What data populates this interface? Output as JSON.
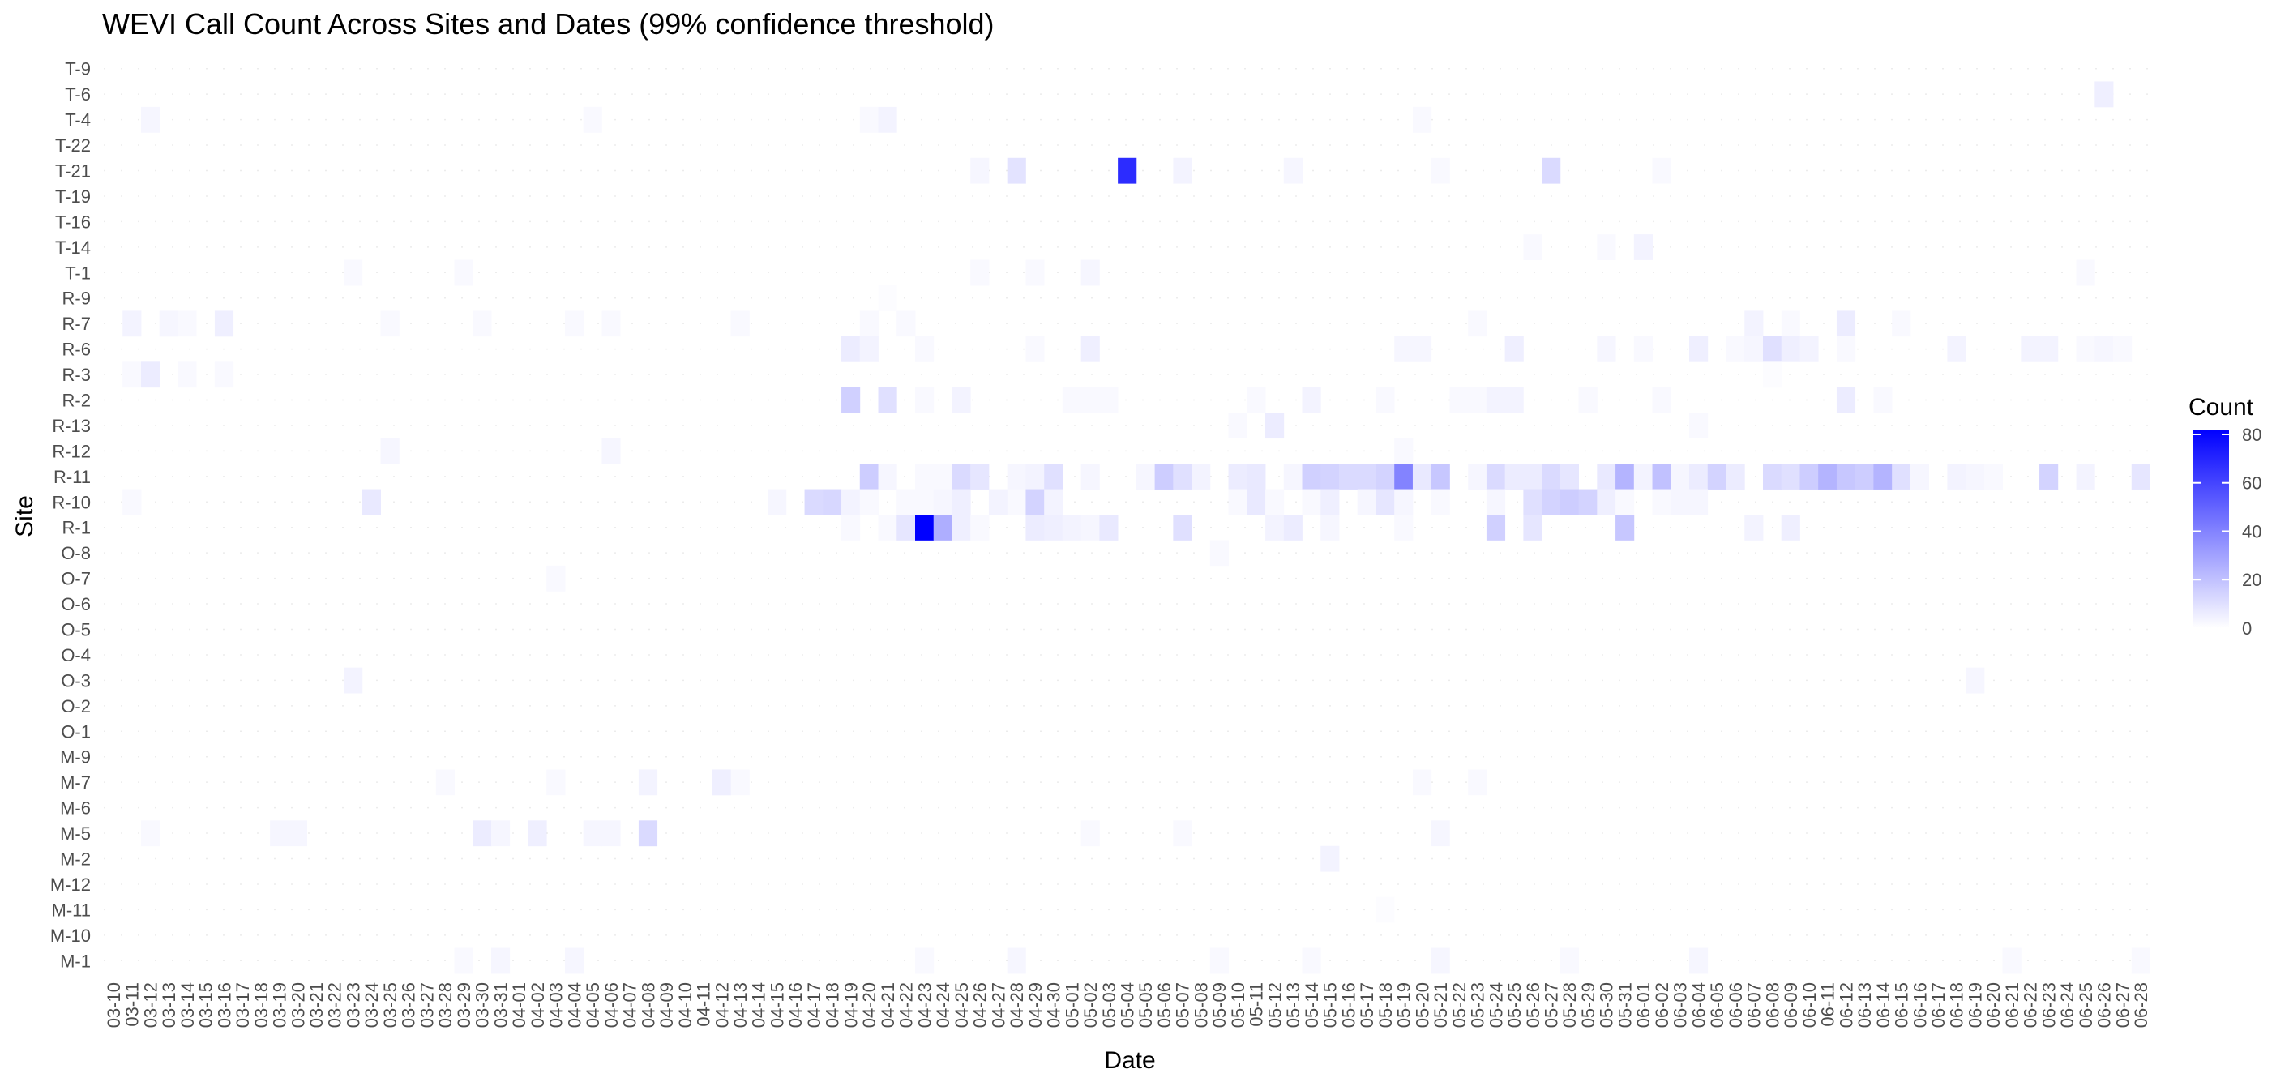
{
  "chart_data": {
    "type": "heatmap",
    "title": "WEVI Call Count Across Sites and Dates (99% confidence threshold)",
    "xlabel": "Date",
    "ylabel": "Site",
    "legend": {
      "title": "Count",
      "ticks": [
        0,
        20,
        40,
        60,
        80
      ],
      "range": [
        0,
        82
      ],
      "placement": "right"
    },
    "colors": {
      "low": "#ffffff",
      "high": "#0000ff",
      "dotted_grid": "#d9d9d9"
    },
    "dates": [
      "03-10",
      "03-11",
      "03-12",
      "03-13",
      "03-14",
      "03-15",
      "03-16",
      "03-17",
      "03-18",
      "03-19",
      "03-20",
      "03-21",
      "03-22",
      "03-23",
      "03-24",
      "03-25",
      "03-26",
      "03-27",
      "03-28",
      "03-29",
      "03-30",
      "03-31",
      "04-01",
      "04-02",
      "04-03",
      "04-04",
      "04-05",
      "04-06",
      "04-07",
      "04-08",
      "04-09",
      "04-10",
      "04-11",
      "04-12",
      "04-13",
      "04-14",
      "04-15",
      "04-16",
      "04-17",
      "04-18",
      "04-19",
      "04-20",
      "04-21",
      "04-22",
      "04-23",
      "04-24",
      "04-25",
      "04-26",
      "04-27",
      "04-28",
      "04-29",
      "04-30",
      "05-01",
      "05-02",
      "05-03",
      "05-04",
      "05-05",
      "05-06",
      "05-07",
      "05-08",
      "05-09",
      "05-10",
      "05-11",
      "05-12",
      "05-13",
      "05-14",
      "05-15",
      "05-16",
      "05-17",
      "05-18",
      "05-19",
      "05-20",
      "05-21",
      "05-22",
      "05-23",
      "05-24",
      "05-25",
      "05-26",
      "05-27",
      "05-28",
      "05-29",
      "05-30",
      "05-31",
      "06-01",
      "06-02",
      "06-03",
      "06-04",
      "06-05",
      "06-06",
      "06-07",
      "06-08",
      "06-09",
      "06-10",
      "06-11",
      "06-12",
      "06-13",
      "06-14",
      "06-15",
      "06-16",
      "06-17",
      "06-18",
      "06-19",
      "06-20",
      "06-21",
      "06-22",
      "06-23",
      "06-24",
      "06-25",
      "06-26",
      "06-27",
      "06-28"
    ],
    "x_tick_labels": [
      "03-10",
      "03-11",
      "03-12",
      "03-13",
      "03-14",
      "03-15",
      "03-16",
      "03-17",
      "03-18",
      "03-19",
      "03-20",
      "03-21",
      "03-22",
      "03-23",
      "03-24",
      "03-25",
      "03-26",
      "03-27",
      "03-28",
      "03-29",
      "03-30",
      "03-31",
      "04-01",
      "04-02",
      "04-03",
      "04-04",
      "04-05",
      "04-06",
      "04-07",
      "04-08",
      "04-09",
      "04-10",
      "04-11",
      "04-12",
      "04-13",
      "04-14",
      "04-15",
      "04-16",
      "04-17",
      "04-18",
      "04-19",
      "04-20",
      "04-21",
      "04-22",
      "04-23",
      "04-24",
      "04-25",
      "04-26",
      "04-27",
      "04-28",
      "04-29",
      "04-30",
      "05-01",
      "05-02",
      "05-03",
      "05-04",
      "05-05",
      "05-06",
      "05-07",
      "05-08",
      "05-09",
      "05-10",
      "05-11",
      "05-12",
      "05-13",
      "05-14",
      "05-15",
      "05-16",
      "05-17",
      "05-18",
      "05-19",
      "05-20",
      "05-21",
      "05-22",
      "05-23",
      "05-24",
      "05-25",
      "05-26",
      "05-27",
      "05-28",
      "05-29",
      "05-30",
      "05-31",
      "06-01",
      "06-02",
      "06-03",
      "06-04",
      "06-05",
      "06-06",
      "06-07",
      "06-08",
      "06-09",
      "06-10",
      "06-11",
      "06-12",
      "06-13",
      "06-14",
      "06-15",
      "06-16",
      "06-17",
      "06-18",
      "06-19",
      "06-20",
      "06-21",
      "06-22",
      "06-23",
      "06-24",
      "06-25",
      "06-26",
      "06-27",
      "06-28"
    ],
    "sites": [
      "T-9",
      "T-6",
      "T-4",
      "T-22",
      "T-21",
      "T-19",
      "T-16",
      "T-14",
      "T-1",
      "R-9",
      "R-7",
      "R-6",
      "R-3",
      "R-2",
      "R-13",
      "R-12",
      "R-11",
      "R-10",
      "R-1",
      "O-8",
      "O-7",
      "O-6",
      "O-5",
      "O-4",
      "O-3",
      "O-2",
      "O-1",
      "M-9",
      "M-7",
      "M-6",
      "M-5",
      "M-2",
      "M-12",
      "M-11",
      "M-10",
      "M-1"
    ],
    "cells": [
      [
        "T-6",
        "06-26",
        5
      ],
      [
        "T-4",
        "03-12",
        3
      ],
      [
        "T-4",
        "04-05",
        2
      ],
      [
        "T-4",
        "04-20",
        2
      ],
      [
        "T-4",
        "04-21",
        4
      ],
      [
        "T-4",
        "05-20",
        2
      ],
      [
        "T-21",
        "04-26",
        3
      ],
      [
        "T-21",
        "04-28",
        9
      ],
      [
        "T-21",
        "05-04",
        68
      ],
      [
        "T-21",
        "05-07",
        4
      ],
      [
        "T-21",
        "05-13",
        3
      ],
      [
        "T-21",
        "05-21",
        2
      ],
      [
        "T-21",
        "05-27",
        12
      ],
      [
        "T-21",
        "06-02",
        2
      ],
      [
        "T-14",
        "05-26",
        2
      ],
      [
        "T-14",
        "05-30",
        2
      ],
      [
        "T-14",
        "06-01",
        4
      ],
      [
        "T-1",
        "03-23",
        2
      ],
      [
        "T-1",
        "03-29",
        2
      ],
      [
        "T-1",
        "04-26",
        2
      ],
      [
        "T-1",
        "04-29",
        2
      ],
      [
        "T-1",
        "05-02",
        3
      ],
      [
        "T-1",
        "06-25",
        2
      ],
      [
        "R-9",
        "04-21",
        1
      ],
      [
        "R-7",
        "03-11",
        4
      ],
      [
        "R-7",
        "03-13",
        3
      ],
      [
        "R-7",
        "03-14",
        2
      ],
      [
        "R-7",
        "03-16",
        5
      ],
      [
        "R-7",
        "03-25",
        2
      ],
      [
        "R-7",
        "03-30",
        2
      ],
      [
        "R-7",
        "04-04",
        2
      ],
      [
        "R-7",
        "04-06",
        2
      ],
      [
        "R-7",
        "04-13",
        2
      ],
      [
        "R-7",
        "04-20",
        2
      ],
      [
        "R-7",
        "04-22",
        2
      ],
      [
        "R-7",
        "05-23",
        2
      ],
      [
        "R-7",
        "06-07",
        4
      ],
      [
        "R-7",
        "06-09",
        2
      ],
      [
        "R-7",
        "06-12",
        6
      ],
      [
        "R-7",
        "06-15",
        2
      ],
      [
        "R-6",
        "04-19",
        6
      ],
      [
        "R-6",
        "04-20",
        4
      ],
      [
        "R-6",
        "04-23",
        2
      ],
      [
        "R-6",
        "04-29",
        2
      ],
      [
        "R-6",
        "05-02",
        5
      ],
      [
        "R-6",
        "05-19",
        3
      ],
      [
        "R-6",
        "05-20",
        3
      ],
      [
        "R-6",
        "05-25",
        5
      ],
      [
        "R-6",
        "05-30",
        3
      ],
      [
        "R-6",
        "06-01",
        2
      ],
      [
        "R-6",
        "06-04",
        5
      ],
      [
        "R-6",
        "06-06",
        2
      ],
      [
        "R-6",
        "06-07",
        3
      ],
      [
        "R-6",
        "06-08",
        10
      ],
      [
        "R-6",
        "06-09",
        5
      ],
      [
        "R-6",
        "06-10",
        4
      ],
      [
        "R-6",
        "06-12",
        2
      ],
      [
        "R-6",
        "06-18",
        4
      ],
      [
        "R-6",
        "06-22",
        4
      ],
      [
        "R-6",
        "06-23",
        4
      ],
      [
        "R-6",
        "06-25",
        2
      ],
      [
        "R-6",
        "06-26",
        3
      ],
      [
        "R-6",
        "06-27",
        2
      ],
      [
        "R-3",
        "03-11",
        2
      ],
      [
        "R-3",
        "03-12",
        6
      ],
      [
        "R-3",
        "03-14",
        2
      ],
      [
        "R-3",
        "03-16",
        2
      ],
      [
        "R-3",
        "06-08",
        1
      ],
      [
        "R-2",
        "04-19",
        15
      ],
      [
        "R-2",
        "04-21",
        10
      ],
      [
        "R-2",
        "04-23",
        2
      ],
      [
        "R-2",
        "04-25",
        4
      ],
      [
        "R-2",
        "05-01",
        2
      ],
      [
        "R-2",
        "05-02",
        2
      ],
      [
        "R-2",
        "05-03",
        2
      ],
      [
        "R-2",
        "05-11",
        2
      ],
      [
        "R-2",
        "05-14",
        4
      ],
      [
        "R-2",
        "05-18",
        2
      ],
      [
        "R-2",
        "05-22",
        2
      ],
      [
        "R-2",
        "05-23",
        2
      ],
      [
        "R-2",
        "05-24",
        4
      ],
      [
        "R-2",
        "05-25",
        4
      ],
      [
        "R-2",
        "05-29",
        2
      ],
      [
        "R-2",
        "06-02",
        2
      ],
      [
        "R-2",
        "06-12",
        6
      ],
      [
        "R-2",
        "06-14",
        2
      ],
      [
        "R-13",
        "05-10",
        2
      ],
      [
        "R-13",
        "05-12",
        6
      ],
      [
        "R-13",
        "06-04",
        2
      ],
      [
        "R-12",
        "03-25",
        3
      ],
      [
        "R-12",
        "04-06",
        3
      ],
      [
        "R-12",
        "05-19",
        2
      ],
      [
        "R-11",
        "04-20",
        16
      ],
      [
        "R-11",
        "04-21",
        3
      ],
      [
        "R-11",
        "04-23",
        2
      ],
      [
        "R-11",
        "04-24",
        2
      ],
      [
        "R-11",
        "04-25",
        12
      ],
      [
        "R-11",
        "04-26",
        8
      ],
      [
        "R-11",
        "04-28",
        3
      ],
      [
        "R-11",
        "04-29",
        4
      ],
      [
        "R-11",
        "04-30",
        10
      ],
      [
        "R-11",
        "05-02",
        3
      ],
      [
        "R-11",
        "05-05",
        3
      ],
      [
        "R-11",
        "05-06",
        16
      ],
      [
        "R-11",
        "05-07",
        10
      ],
      [
        "R-11",
        "05-08",
        4
      ],
      [
        "R-11",
        "05-10",
        6
      ],
      [
        "R-11",
        "05-11",
        7
      ],
      [
        "R-11",
        "05-13",
        3
      ],
      [
        "R-11",
        "05-14",
        15
      ],
      [
        "R-11",
        "05-15",
        14
      ],
      [
        "R-11",
        "05-16",
        12
      ],
      [
        "R-11",
        "05-17",
        12
      ],
      [
        "R-11",
        "05-18",
        14
      ],
      [
        "R-11",
        "05-19",
        40
      ],
      [
        "R-11",
        "05-20",
        7
      ],
      [
        "R-11",
        "05-21",
        18
      ],
      [
        "R-11",
        "05-23",
        3
      ],
      [
        "R-11",
        "05-24",
        12
      ],
      [
        "R-11",
        "05-25",
        6
      ],
      [
        "R-11",
        "05-26",
        6
      ],
      [
        "R-11",
        "05-27",
        12
      ],
      [
        "R-11",
        "05-28",
        8
      ],
      [
        "R-11",
        "05-30",
        7
      ],
      [
        "R-11",
        "05-31",
        24
      ],
      [
        "R-11",
        "06-01",
        4
      ],
      [
        "R-11",
        "06-02",
        20
      ],
      [
        "R-11",
        "06-03",
        3
      ],
      [
        "R-11",
        "06-04",
        6
      ],
      [
        "R-11",
        "06-05",
        14
      ],
      [
        "R-11",
        "06-06",
        6
      ],
      [
        "R-11",
        "06-08",
        12
      ],
      [
        "R-11",
        "06-09",
        10
      ],
      [
        "R-11",
        "06-10",
        16
      ],
      [
        "R-11",
        "06-11",
        24
      ],
      [
        "R-11",
        "06-12",
        18
      ],
      [
        "R-11",
        "06-13",
        16
      ],
      [
        "R-11",
        "06-14",
        24
      ],
      [
        "R-11",
        "06-15",
        10
      ],
      [
        "R-11",
        "06-16",
        3
      ],
      [
        "R-11",
        "06-18",
        4
      ],
      [
        "R-11",
        "06-19",
        3
      ],
      [
        "R-11",
        "06-20",
        2
      ],
      [
        "R-11",
        "06-23",
        14
      ],
      [
        "R-11",
        "06-25",
        4
      ],
      [
        "R-11",
        "06-28",
        8
      ],
      [
        "R-10",
        "03-11",
        2
      ],
      [
        "R-10",
        "03-24",
        7
      ],
      [
        "R-10",
        "04-15",
        3
      ],
      [
        "R-10",
        "04-17",
        12
      ],
      [
        "R-10",
        "04-18",
        13
      ],
      [
        "R-10",
        "04-19",
        4
      ],
      [
        "R-10",
        "04-20",
        2
      ],
      [
        "R-10",
        "04-22",
        2
      ],
      [
        "R-10",
        "04-23",
        2
      ],
      [
        "R-10",
        "04-24",
        3
      ],
      [
        "R-10",
        "04-25",
        5
      ],
      [
        "R-10",
        "04-27",
        4
      ],
      [
        "R-10",
        "04-28",
        2
      ],
      [
        "R-10",
        "04-29",
        14
      ],
      [
        "R-10",
        "04-30",
        4
      ],
      [
        "R-10",
        "05-10",
        2
      ],
      [
        "R-10",
        "05-11",
        7
      ],
      [
        "R-10",
        "05-12",
        2
      ],
      [
        "R-10",
        "05-14",
        2
      ],
      [
        "R-10",
        "05-15",
        5
      ],
      [
        "R-10",
        "05-17",
        3
      ],
      [
        "R-10",
        "05-18",
        8
      ],
      [
        "R-10",
        "05-19",
        3
      ],
      [
        "R-10",
        "05-21",
        2
      ],
      [
        "R-10",
        "05-24",
        3
      ],
      [
        "R-10",
        "05-26",
        10
      ],
      [
        "R-10",
        "05-27",
        14
      ],
      [
        "R-10",
        "05-28",
        16
      ],
      [
        "R-10",
        "05-29",
        14
      ],
      [
        "R-10",
        "05-30",
        5
      ],
      [
        "R-10",
        "05-31",
        2
      ],
      [
        "R-10",
        "06-02",
        2
      ],
      [
        "R-10",
        "06-03",
        3
      ],
      [
        "R-10",
        "06-04",
        3
      ],
      [
        "R-1",
        "04-19",
        2
      ],
      [
        "R-1",
        "04-21",
        2
      ],
      [
        "R-1",
        "04-22",
        8
      ],
      [
        "R-1",
        "04-23",
        82
      ],
      [
        "R-1",
        "04-24",
        26
      ],
      [
        "R-1",
        "04-25",
        5
      ],
      [
        "R-1",
        "04-26",
        2
      ],
      [
        "R-1",
        "04-29",
        6
      ],
      [
        "R-1",
        "04-30",
        5
      ],
      [
        "R-1",
        "05-01",
        4
      ],
      [
        "R-1",
        "05-02",
        3
      ],
      [
        "R-1",
        "05-03",
        7
      ],
      [
        "R-1",
        "05-07",
        10
      ],
      [
        "R-1",
        "05-12",
        4
      ],
      [
        "R-1",
        "05-13",
        6
      ],
      [
        "R-1",
        "05-15",
        3
      ],
      [
        "R-1",
        "05-19",
        2
      ],
      [
        "R-1",
        "05-24",
        15
      ],
      [
        "R-1",
        "05-26",
        8
      ],
      [
        "R-1",
        "05-31",
        18
      ],
      [
        "R-1",
        "06-07",
        4
      ],
      [
        "R-1",
        "06-09",
        5
      ],
      [
        "O-8",
        "05-09",
        2
      ],
      [
        "O-7",
        "04-03",
        2
      ],
      [
        "O-3",
        "03-23",
        4
      ],
      [
        "O-3",
        "06-19",
        3
      ],
      [
        "M-7",
        "03-28",
        2
      ],
      [
        "M-7",
        "04-03",
        2
      ],
      [
        "M-7",
        "04-08",
        4
      ],
      [
        "M-7",
        "04-12",
        5
      ],
      [
        "M-7",
        "04-13",
        2
      ],
      [
        "M-7",
        "05-20",
        2
      ],
      [
        "M-7",
        "05-23",
        2
      ],
      [
        "M-5",
        "03-12",
        2
      ],
      [
        "M-5",
        "03-19",
        3
      ],
      [
        "M-5",
        "03-20",
        3
      ],
      [
        "M-5",
        "03-30",
        6
      ],
      [
        "M-5",
        "03-31",
        3
      ],
      [
        "M-5",
        "04-02",
        5
      ],
      [
        "M-5",
        "04-05",
        3
      ],
      [
        "M-5",
        "04-06",
        3
      ],
      [
        "M-5",
        "04-08",
        12
      ],
      [
        "M-5",
        "05-02",
        2
      ],
      [
        "M-5",
        "05-07",
        2
      ],
      [
        "M-5",
        "05-21",
        3
      ],
      [
        "M-2",
        "05-15",
        4
      ],
      [
        "M-11",
        "05-18",
        1
      ],
      [
        "M-1",
        "03-29",
        2
      ],
      [
        "M-1",
        "03-31",
        3
      ],
      [
        "M-1",
        "04-04",
        3
      ],
      [
        "M-1",
        "04-23",
        2
      ],
      [
        "M-1",
        "04-28",
        3
      ],
      [
        "M-1",
        "05-09",
        2
      ],
      [
        "M-1",
        "05-14",
        2
      ],
      [
        "M-1",
        "05-21",
        3
      ],
      [
        "M-1",
        "05-28",
        2
      ],
      [
        "M-1",
        "06-04",
        3
      ],
      [
        "M-1",
        "06-21",
        2
      ],
      [
        "M-1",
        "06-28",
        2
      ]
    ]
  }
}
